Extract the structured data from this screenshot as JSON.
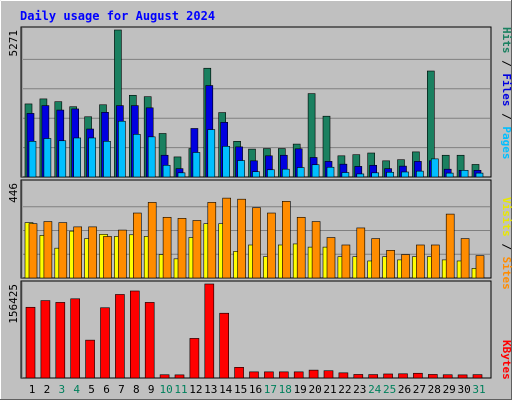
{
  "chart_data": [
    {
      "type": "bar",
      "panel": "hits_files_pages",
      "title": "Daily usage for August 2024",
      "ylabel_parts": [
        "Pages",
        "Files",
        "Hits"
      ],
      "separator": " / ",
      "y_max_label": "5271",
      "ylim": [
        0,
        5271
      ],
      "categories": [
        "1",
        "2",
        "3",
        "4",
        "5",
        "6",
        "7",
        "8",
        "9",
        "10",
        "11",
        "12",
        "13",
        "14",
        "15",
        "16",
        "17",
        "18",
        "19",
        "20",
        "21",
        "22",
        "23",
        "24",
        "25",
        "26",
        "27",
        "28",
        "29",
        "30",
        "31"
      ],
      "weekend_days": [
        "3",
        "4",
        "10",
        "11",
        "17",
        "18",
        "24",
        "25",
        "31"
      ],
      "series": [
        {
          "name": "Hits",
          "color": "#1a8060",
          "values": [
            2620,
            2800,
            2700,
            2520,
            2160,
            2590,
            5271,
            2930,
            2880,
            1560,
            720,
            1020,
            3900,
            2310,
            1280,
            1000,
            1020,
            1020,
            1180,
            2990,
            2180,
            760,
            800,
            860,
            580,
            620,
            900,
            3800,
            780,
            780,
            450
          ]
        },
        {
          "name": "Files",
          "color": "#0000e0",
          "values": [
            2280,
            2560,
            2400,
            2440,
            1720,
            2320,
            2560,
            2560,
            2480,
            780,
            300,
            1740,
            3280,
            1960,
            1080,
            580,
            760,
            780,
            1010,
            700,
            560,
            460,
            380,
            420,
            300,
            390,
            560,
            580,
            280,
            240,
            240
          ]
        },
        {
          "name": "Pages",
          "color": "#00bfff",
          "values": [
            1280,
            1380,
            1300,
            1400,
            1400,
            1280,
            2000,
            1530,
            1440,
            420,
            150,
            880,
            1700,
            1100,
            590,
            190,
            260,
            280,
            340,
            440,
            350,
            160,
            110,
            150,
            170,
            180,
            210,
            650,
            140,
            240,
            140
          ]
        }
      ]
    },
    {
      "type": "bar",
      "panel": "sites_visits",
      "ylabel_parts": [
        "Sites",
        "Visits"
      ],
      "separator": " / ",
      "y_max_label": "446",
      "ylim": [
        0,
        446
      ],
      "series": [
        {
          "name": "Visits",
          "color": "#ffff00",
          "values": [
            260,
            200,
            140,
            220,
            185,
            205,
            195,
            203,
            195,
            110,
            90,
            190,
            255,
            255,
            125,
            155,
            100,
            155,
            160,
            145,
            145,
            100,
            100,
            80,
            100,
            85,
            100,
            100,
            85,
            80,
            45
          ]
        },
        {
          "name": "Sites",
          "color": "#ff8c00",
          "values": [
            255,
            265,
            260,
            240,
            240,
            195,
            225,
            305,
            355,
            285,
            280,
            270,
            355,
            375,
            370,
            330,
            305,
            360,
            285,
            265,
            190,
            155,
            235,
            185,
            130,
            110,
            155,
            155,
            300,
            185,
            105
          ]
        }
      ]
    },
    {
      "type": "bar",
      "panel": "kbytes",
      "ylabel_parts": [
        "KBytes"
      ],
      "y_max_label": "156425",
      "ylim": [
        0,
        156425
      ],
      "series": [
        {
          "name": "KBytes",
          "color": "#ff0000",
          "values": [
            117700,
            128800,
            125800,
            131800,
            63000,
            116900,
            139000,
            144800,
            125800,
            5400,
            5200,
            65900,
            156425,
            107800,
            17800,
            10200,
            10200,
            10200,
            10200,
            13100,
            12100,
            8600,
            5900,
            5700,
            6700,
            7000,
            7900,
            5900,
            5400,
            5200,
            5600
          ]
        }
      ]
    }
  ],
  "colors": {
    "background": "#c0c0c0",
    "title": "#0000ff",
    "axis_text": "#000000",
    "weekend_text": "#00805c",
    "gridline": "#808080"
  }
}
